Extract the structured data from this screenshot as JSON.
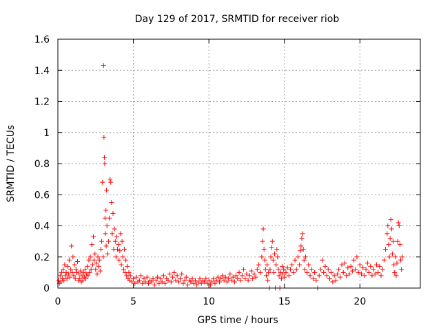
{
  "chart_data": {
    "type": "scatter",
    "title": "Day 129 of 2017, SRMTID for receiver riob",
    "xlabel": "GPS time / hours",
    "ylabel": "SRMTID / TECUs",
    "xlim": [
      0,
      24
    ],
    "ylim": [
      0,
      1.6
    ],
    "xticks": [
      0,
      5,
      10,
      15,
      20
    ],
    "xtick_labels": [
      "0",
      "5",
      "10",
      "15",
      "20"
    ],
    "yticks": [
      0,
      0.2,
      0.4,
      0.6,
      0.8,
      1.0,
      1.2,
      1.4,
      1.6
    ],
    "ytick_labels": [
      "0",
      "0.2",
      "0.4",
      "0.6",
      "0.8",
      "1",
      "1.2",
      "1.4",
      "1.6"
    ],
    "grid": true,
    "marker": "+",
    "series": [
      {
        "name": "SRMTID",
        "color": "#ff0000",
        "points": [
          [
            0.05,
            0.05
          ],
          [
            0.1,
            0.03
          ],
          [
            0.15,
            0.08
          ],
          [
            0.2,
            0.04
          ],
          [
            0.25,
            0.1
          ],
          [
            0.3,
            0.06
          ],
          [
            0.35,
            0.12
          ],
          [
            0.4,
            0.05
          ],
          [
            0.45,
            0.15
          ],
          [
            0.5,
            0.08
          ],
          [
            0.55,
            0.1
          ],
          [
            0.6,
            0.06
          ],
          [
            0.65,
            0.14
          ],
          [
            0.7,
            0.09
          ],
          [
            0.75,
            0.18
          ],
          [
            0.8,
            0.07
          ],
          [
            0.85,
            0.12
          ],
          [
            0.9,
            0.27
          ],
          [
            0.95,
            0.1
          ],
          [
            1.0,
            0.2
          ],
          [
            1.05,
            0.08
          ],
          [
            1.1,
            0.15
          ],
          [
            1.15,
            0.06
          ],
          [
            1.2,
            0.12
          ],
          [
            1.25,
            0.1
          ],
          [
            1.3,
            0.17
          ],
          [
            1.35,
            0.05
          ],
          [
            1.4,
            0.09
          ],
          [
            1.45,
            0.06
          ],
          [
            1.5,
            0.11
          ],
          [
            1.55,
            0.04
          ],
          [
            1.6,
            0.08
          ],
          [
            1.65,
            0.05
          ],
          [
            1.7,
            0.1
          ],
          [
            1.75,
            0.07
          ],
          [
            1.8,
            0.12
          ],
          [
            1.85,
            0.06
          ],
          [
            1.9,
            0.09
          ],
          [
            1.95,
            0.14
          ],
          [
            2.0,
            0.08
          ],
          [
            2.05,
            0.18
          ],
          [
            2.1,
            0.1
          ],
          [
            2.15,
            0.2
          ],
          [
            2.2,
            0.12
          ],
          [
            2.25,
            0.28
          ],
          [
            2.3,
            0.15
          ],
          [
            2.35,
            0.33
          ],
          [
            2.4,
            0.18
          ],
          [
            2.45,
            0.22
          ],
          [
            2.5,
            0.12
          ],
          [
            2.55,
            0.16
          ],
          [
            2.6,
            0.09
          ],
          [
            2.65,
            0.2
          ],
          [
            2.7,
            0.14
          ],
          [
            2.75,
            0.18
          ],
          [
            2.8,
            0.11
          ],
          [
            2.85,
            0.25
          ],
          [
            2.9,
            0.3
          ],
          [
            2.95,
            0.68
          ],
          [
            3.0,
            0.2
          ],
          [
            3.02,
            1.43
          ],
          [
            3.05,
            0.97
          ],
          [
            3.08,
            0.84
          ],
          [
            3.1,
            0.8
          ],
          [
            3.12,
            0.45
          ],
          [
            3.15,
            0.35
          ],
          [
            3.18,
            0.5
          ],
          [
            3.2,
            0.27
          ],
          [
            3.22,
            0.63
          ],
          [
            3.25,
            0.4
          ],
          [
            3.3,
            0.22
          ],
          [
            3.35,
            0.3
          ],
          [
            3.4,
            0.45
          ],
          [
            3.45,
            0.7
          ],
          [
            3.5,
            0.68
          ],
          [
            3.55,
            0.55
          ],
          [
            3.6,
            0.35
          ],
          [
            3.65,
            0.48
          ],
          [
            3.7,
            0.25
          ],
          [
            3.75,
            0.38
          ],
          [
            3.8,
            0.3
          ],
          [
            3.85,
            0.2
          ],
          [
            3.9,
            0.33
          ],
          [
            3.95,
            0.25
          ],
          [
            4.0,
            0.28
          ],
          [
            4.05,
            0.18
          ],
          [
            4.1,
            0.24
          ],
          [
            4.15,
            0.35
          ],
          [
            4.2,
            0.15
          ],
          [
            4.25,
            0.3
          ],
          [
            4.3,
            0.2
          ],
          [
            4.35,
            0.12
          ],
          [
            4.4,
            0.25
          ],
          [
            4.45,
            0.1
          ],
          [
            4.5,
            0.18
          ],
          [
            4.55,
            0.08
          ],
          [
            4.6,
            0.14
          ],
          [
            4.65,
            0.06
          ],
          [
            4.7,
            0.1
          ],
          [
            4.75,
            0.05
          ],
          [
            4.8,
            0.08
          ],
          [
            4.9,
            0.04
          ],
          [
            5.0,
            0.06
          ],
          [
            5.1,
            0.03
          ],
          [
            5.2,
            0.07
          ],
          [
            5.3,
            0.04
          ],
          [
            5.4,
            0.05
          ],
          [
            5.5,
            0.08
          ],
          [
            5.6,
            0.03
          ],
          [
            5.7,
            0.06
          ],
          [
            5.8,
            0.04
          ],
          [
            5.9,
            0.07
          ],
          [
            6.0,
            0.03
          ],
          [
            6.1,
            0.05
          ],
          [
            6.2,
            0.04
          ],
          [
            6.3,
            0.06
          ],
          [
            6.4,
            0.02
          ],
          [
            6.5,
            0.05
          ],
          [
            6.6,
            0.07
          ],
          [
            6.7,
            0.03
          ],
          [
            6.8,
            0.06
          ],
          [
            6.9,
            0.04
          ],
          [
            7.0,
            0.08
          ],
          [
            7.1,
            0.03
          ],
          [
            7.2,
            0.06
          ],
          [
            7.3,
            0.05
          ],
          [
            7.4,
            0.09
          ],
          [
            7.5,
            0.04
          ],
          [
            7.6,
            0.07
          ],
          [
            7.7,
            0.1
          ],
          [
            7.8,
            0.05
          ],
          [
            7.9,
            0.08
          ],
          [
            8.0,
            0.04
          ],
          [
            8.1,
            0.06
          ],
          [
            8.2,
            0.09
          ],
          [
            8.3,
            0.03
          ],
          [
            8.4,
            0.05
          ],
          [
            8.5,
            0.07
          ],
          [
            8.6,
            0.02
          ],
          [
            8.7,
            0.05
          ],
          [
            8.8,
            0.04
          ],
          [
            8.9,
            0.06
          ],
          [
            9.0,
            0.03
          ],
          [
            9.1,
            0.05
          ],
          [
            9.2,
            0.02
          ],
          [
            9.3,
            0.04
          ],
          [
            9.4,
            0.06
          ],
          [
            9.5,
            0.03
          ],
          [
            9.6,
            0.05
          ],
          [
            9.7,
            0.04
          ],
          [
            9.8,
            0.06
          ],
          [
            9.9,
            0.03
          ],
          [
            10.0,
            0.05
          ],
          [
            10.1,
            0.02
          ],
          [
            10.2,
            0.04
          ],
          [
            10.3,
            0.06
          ],
          [
            10.4,
            0.03
          ],
          [
            10.5,
            0.05
          ],
          [
            10.6,
            0.07
          ],
          [
            10.7,
            0.04
          ],
          [
            10.8,
            0.06
          ],
          [
            10.9,
            0.08
          ],
          [
            11.0,
            0.05
          ],
          [
            11.1,
            0.07
          ],
          [
            11.2,
            0.04
          ],
          [
            11.3,
            0.06
          ],
          [
            11.4,
            0.09
          ],
          [
            11.5,
            0.05
          ],
          [
            11.6,
            0.07
          ],
          [
            11.7,
            0.04
          ],
          [
            11.8,
            0.08
          ],
          [
            11.9,
            0.06
          ],
          [
            12.0,
            0.1
          ],
          [
            12.1,
            0.05
          ],
          [
            12.2,
            0.08
          ],
          [
            12.3,
            0.12
          ],
          [
            12.4,
            0.06
          ],
          [
            12.5,
            0.09
          ],
          [
            12.6,
            0.05
          ],
          [
            12.7,
            0.08
          ],
          [
            12.8,
            0.11
          ],
          [
            12.9,
            0.06
          ],
          [
            13.0,
            0.09
          ],
          [
            13.1,
            0.07
          ],
          [
            13.2,
            0.12
          ],
          [
            13.3,
            0.15
          ],
          [
            13.4,
            0.1
          ],
          [
            13.5,
            0.2
          ],
          [
            13.55,
            0.3
          ],
          [
            13.6,
            0.38
          ],
          [
            13.65,
            0.25
          ],
          [
            13.7,
            0.18
          ],
          [
            13.75,
            0.12
          ],
          [
            13.8,
            0.08
          ],
          [
            13.85,
            0.15
          ],
          [
            13.9,
            0.05
          ],
          [
            13.95,
            0.1
          ],
          [
            14.0,
            0.0
          ],
          [
            14.05,
            0.12
          ],
          [
            14.1,
            0.2
          ],
          [
            14.15,
            0.26
          ],
          [
            14.2,
            0.3
          ],
          [
            14.25,
            0.18
          ],
          [
            14.3,
            0.1
          ],
          [
            14.35,
            0.22
          ],
          [
            14.4,
            0.0
          ],
          [
            14.45,
            0.15
          ],
          [
            14.5,
            0.25
          ],
          [
            14.55,
            0.2
          ],
          [
            14.6,
            0.12
          ],
          [
            14.65,
            0.08
          ],
          [
            14.7,
            0.0
          ],
          [
            14.75,
            0.1
          ],
          [
            14.8,
            0.06
          ],
          [
            14.85,
            0.14
          ],
          [
            14.9,
            0.09
          ],
          [
            14.95,
            0.12
          ],
          [
            15.0,
            0.07
          ],
          [
            15.1,
            0.1
          ],
          [
            15.2,
            0.13
          ],
          [
            15.3,
            0.08
          ],
          [
            15.4,
            0.12
          ],
          [
            15.5,
            0.15
          ],
          [
            15.6,
            0.1
          ],
          [
            15.7,
            0.18
          ],
          [
            15.8,
            0.12
          ],
          [
            15.9,
            0.2
          ],
          [
            16.0,
            0.15
          ],
          [
            16.05,
            0.24
          ],
          [
            16.1,
            0.27
          ],
          [
            16.15,
            0.32
          ],
          [
            16.2,
            0.35
          ],
          [
            16.25,
            0.25
          ],
          [
            16.3,
            0.18
          ],
          [
            16.35,
            0.12
          ],
          [
            16.4,
            0.2
          ],
          [
            16.5,
            0.1
          ],
          [
            16.6,
            0.15
          ],
          [
            16.7,
            0.08
          ],
          [
            16.8,
            0.12
          ],
          [
            16.9,
            0.06
          ],
          [
            17.0,
            0.1
          ],
          [
            17.1,
            0.05
          ],
          [
            17.2,
            0.0
          ],
          [
            17.3,
            0.08
          ],
          [
            17.4,
            0.12
          ],
          [
            17.5,
            0.18
          ],
          [
            17.6,
            0.1
          ],
          [
            17.7,
            0.14
          ],
          [
            17.8,
            0.08
          ],
          [
            17.9,
            0.12
          ],
          [
            18.0,
            0.06
          ],
          [
            18.1,
            0.1
          ],
          [
            18.2,
            0.04
          ],
          [
            18.3,
            0.08
          ],
          [
            18.4,
            0.05
          ],
          [
            18.5,
            0.09
          ],
          [
            18.6,
            0.12
          ],
          [
            18.7,
            0.07
          ],
          [
            18.8,
            0.15
          ],
          [
            18.9,
            0.1
          ],
          [
            19.0,
            0.16
          ],
          [
            19.1,
            0.08
          ],
          [
            19.2,
            0.13
          ],
          [
            19.3,
            0.09
          ],
          [
            19.4,
            0.14
          ],
          [
            19.5,
            0.11
          ],
          [
            19.6,
            0.18
          ],
          [
            19.7,
            0.12
          ],
          [
            19.8,
            0.2
          ],
          [
            19.9,
            0.1
          ],
          [
            20.0,
            0.15
          ],
          [
            20.1,
            0.09
          ],
          [
            20.2,
            0.13
          ],
          [
            20.3,
            0.08
          ],
          [
            20.4,
            0.12
          ],
          [
            20.5,
            0.16
          ],
          [
            20.6,
            0.1
          ],
          [
            20.7,
            0.14
          ],
          [
            20.8,
            0.08
          ],
          [
            20.9,
            0.12
          ],
          [
            21.0,
            0.09
          ],
          [
            21.1,
            0.15
          ],
          [
            21.2,
            0.1
          ],
          [
            21.3,
            0.14
          ],
          [
            21.4,
            0.08
          ],
          [
            21.5,
            0.12
          ],
          [
            21.6,
            0.18
          ],
          [
            21.7,
            0.25
          ],
          [
            21.8,
            0.35
          ],
          [
            21.85,
            0.4
          ],
          [
            21.9,
            0.28
          ],
          [
            21.95,
            0.2
          ],
          [
            22.0,
            0.32
          ],
          [
            22.05,
            0.44
          ],
          [
            22.1,
            0.38
          ],
          [
            22.15,
            0.22
          ],
          [
            22.2,
            0.3
          ],
          [
            22.25,
            0.15
          ],
          [
            22.3,
            0.1
          ],
          [
            22.35,
            0.2
          ],
          [
            22.4,
            0.08
          ],
          [
            22.45,
            0.16
          ],
          [
            22.5,
            0.3
          ],
          [
            22.55,
            0.42
          ],
          [
            22.6,
            0.4
          ],
          [
            22.65,
            0.28
          ],
          [
            22.7,
            0.18
          ],
          [
            22.75,
            0.12
          ],
          [
            22.8,
            0.2
          ]
        ]
      }
    ]
  }
}
